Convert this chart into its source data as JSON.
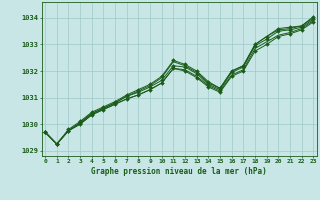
{
  "title": "Graphe pression niveau de la mer (hPa)",
  "bg_color": "#c8e6e6",
  "grid_color": "#a0c8c8",
  "line_color": "#1a5c1a",
  "x_ticks": [
    0,
    1,
    2,
    3,
    4,
    5,
    6,
    7,
    8,
    9,
    10,
    11,
    12,
    13,
    14,
    15,
    16,
    17,
    18,
    19,
    20,
    21,
    22,
    23
  ],
  "ylim": [
    1028.8,
    1034.6
  ],
  "yticks": [
    1029,
    1030,
    1031,
    1032,
    1033,
    1034
  ],
  "series": [
    [
      1029.7,
      1029.25,
      1029.75,
      1030.0,
      1030.35,
      1030.55,
      1030.75,
      1030.95,
      1031.1,
      1031.3,
      1031.55,
      1032.1,
      1032.0,
      1031.75,
      1031.4,
      1031.2,
      1031.8,
      1032.0,
      1032.75,
      1033.0,
      1033.3,
      1033.4,
      1033.55,
      1033.85
    ],
    [
      1029.7,
      1029.25,
      1029.75,
      1030.0,
      1030.35,
      1030.55,
      1030.75,
      1030.95,
      1031.1,
      1031.3,
      1031.55,
      1032.1,
      1032.05,
      1031.8,
      1031.45,
      1031.25,
      1031.85,
      1032.05,
      1032.85,
      1033.1,
      1033.35,
      1033.45,
      1033.6,
      1033.9
    ],
    [
      1029.7,
      1029.25,
      1029.75,
      1030.05,
      1030.4,
      1030.6,
      1030.8,
      1031.05,
      1031.2,
      1031.4,
      1031.65,
      1032.2,
      1032.15,
      1031.9,
      1031.5,
      1031.3,
      1031.95,
      1032.15,
      1032.95,
      1033.2,
      1033.5,
      1033.55,
      1033.65,
      1033.95
    ],
    [
      1029.7,
      1029.25,
      1029.75,
      1030.05,
      1030.4,
      1030.6,
      1030.8,
      1031.05,
      1031.25,
      1031.45,
      1031.75,
      1032.35,
      1032.2,
      1031.95,
      1031.55,
      1031.35,
      1032.0,
      1032.2,
      1033.0,
      1033.3,
      1033.55,
      1033.6,
      1033.7,
      1034.0
    ],
    [
      1029.7,
      1029.25,
      1029.8,
      1030.1,
      1030.45,
      1030.65,
      1030.85,
      1031.1,
      1031.3,
      1031.5,
      1031.8,
      1032.4,
      1032.25,
      1032.0,
      1031.6,
      1031.35,
      1032.0,
      1032.2,
      1033.0,
      1033.3,
      1033.6,
      1033.65,
      1033.7,
      1034.05
    ]
  ],
  "marker_series": [
    0,
    2,
    4
  ],
  "xlim": [
    -0.3,
    23.3
  ]
}
